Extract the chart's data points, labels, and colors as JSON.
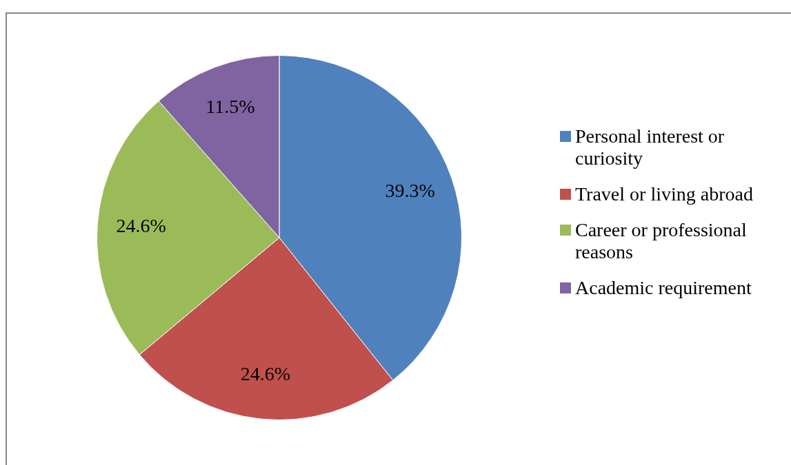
{
  "chart_data": {
    "type": "pie",
    "categories": [
      "Personal interest or curiosity",
      "Travel or living abroad",
      "Career or professional reasons",
      "Academic requirement"
    ],
    "values": [
      39.3,
      24.6,
      24.6,
      11.5
    ],
    "value_labels": [
      "39.3%",
      "24.6%",
      "24.6%",
      "11.5%"
    ],
    "colors": [
      "#4f81bd",
      "#c0504d",
      "#9bbb59",
      "#8064a2"
    ],
    "legend": "right"
  }
}
